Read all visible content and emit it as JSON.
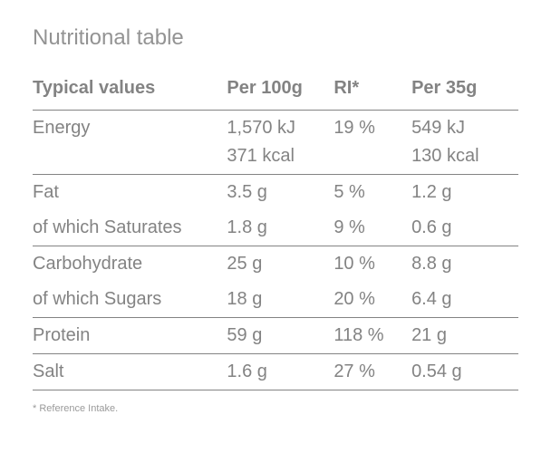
{
  "title": "Nutritional table",
  "columns": {
    "label": "Typical values",
    "per100": "Per 100g",
    "ri": "RI*",
    "per35": "Per 35g"
  },
  "rows": {
    "energy": {
      "label": "Energy",
      "per100_kj": "1,570 kJ",
      "per100_kcal": "371 kcal",
      "ri": "19 %",
      "per35_kj": "549 kJ",
      "per35_kcal": "130 kcal"
    },
    "fat": {
      "label": "Fat",
      "per100": "3.5 g",
      "ri": "5 %",
      "per35": "1.2 g"
    },
    "saturates": {
      "label": "of which Saturates",
      "per100": "1.8 g",
      "ri": "9 %",
      "per35": "0.6 g"
    },
    "carbohydrate": {
      "label": "Carbohydrate",
      "per100": "25 g",
      "ri": "10 %",
      "per35": "8.8 g"
    },
    "sugars": {
      "label": "of which Sugars",
      "per100": "18 g",
      "ri": "20 %",
      "per35": "6.4 g"
    },
    "protein": {
      "label": "Protein",
      "per100": "59 g",
      "ri": "118 %",
      "per35": "21 g"
    },
    "salt": {
      "label": "Salt",
      "per100": "1.6 g",
      "ri": "27 %",
      "per35": "0.54 g"
    }
  },
  "footnote": "* Reference Intake.",
  "colors": {
    "text": "#838383",
    "title": "#939393",
    "rule": "#838383",
    "background": "#ffffff"
  },
  "typography": {
    "title_fontsize": 24,
    "body_fontsize": 20,
    "footnote_fontsize": 11
  }
}
